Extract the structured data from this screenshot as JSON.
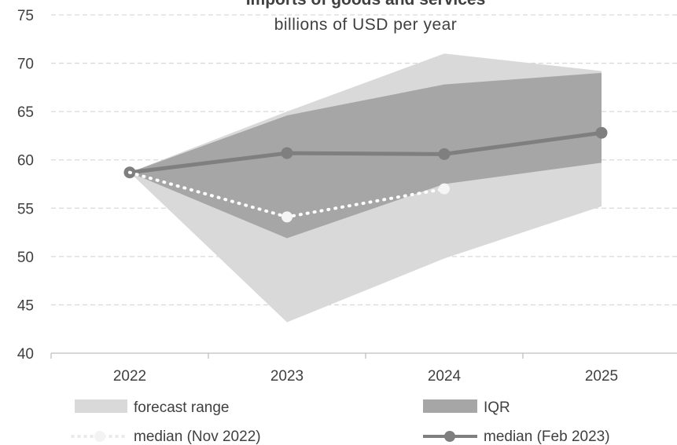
{
  "chart_data": {
    "type": "area",
    "title": "Imports of goods and services",
    "subtitle": "billions of USD per year",
    "x": [
      "2022",
      "2023",
      "2024",
      "2025"
    ],
    "ylim": [
      40,
      75
    ],
    "yticks": [
      40,
      45,
      50,
      55,
      60,
      65,
      70,
      75
    ],
    "grid": true,
    "legend_position": "bottom",
    "series": [
      {
        "name": "forecast range",
        "kind": "band",
        "low": [
          58.7,
          43.2,
          49.8,
          55.2
        ],
        "high": [
          58.7,
          65.0,
          71.0,
          69.2
        ],
        "color": "#d9d9d9"
      },
      {
        "name": "IQR",
        "kind": "band",
        "low": [
          58.7,
          51.9,
          57.5,
          59.7
        ],
        "high": [
          58.7,
          64.6,
          67.8,
          69.0
        ],
        "color": "#a6a6a6"
      },
      {
        "name": "median (Nov 2022)",
        "kind": "line",
        "style": "dotted",
        "values": [
          58.7,
          54.1,
          57.0,
          null
        ],
        "color": "#ffffff"
      },
      {
        "name": "median (Feb 2023)",
        "kind": "line",
        "style": "solid",
        "values": [
          58.7,
          60.7,
          60.6,
          62.8
        ],
        "color": "#7f7f7f"
      }
    ]
  }
}
